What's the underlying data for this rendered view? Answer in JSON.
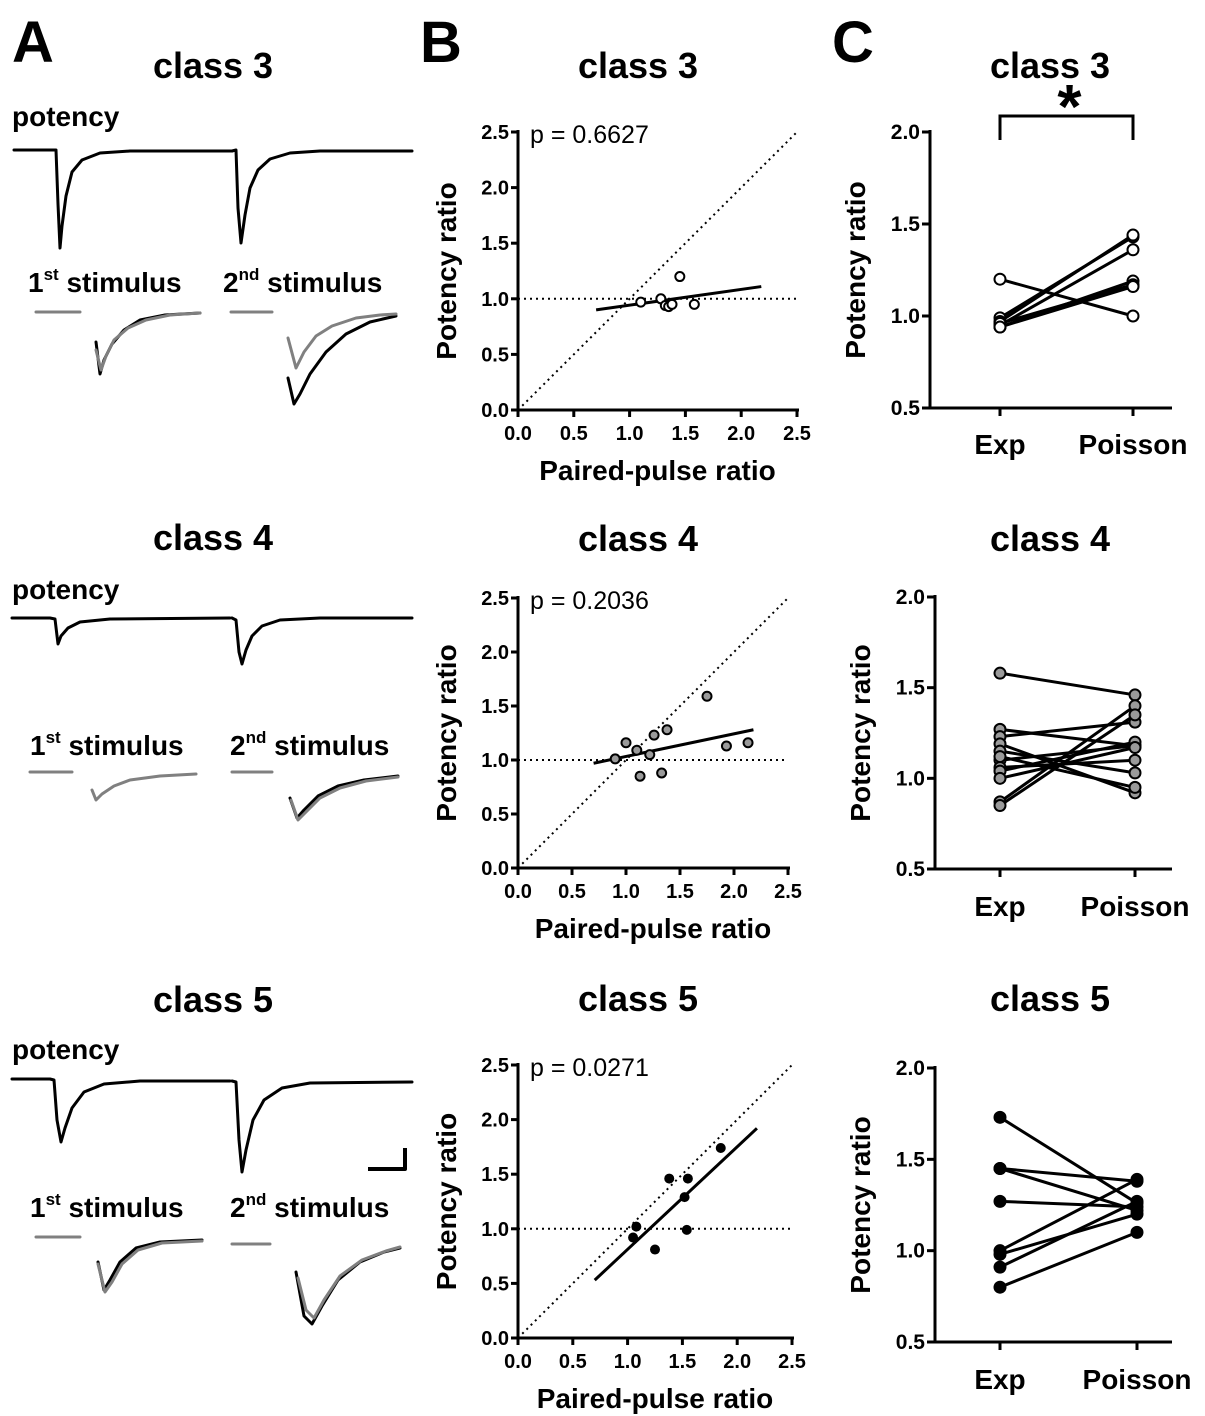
{
  "panels": {
    "a": "A",
    "b": "B",
    "c": "C"
  },
  "trace_labels": {
    "potency": "potency",
    "first_num": "1",
    "first_sup": "st",
    "first_word": " stimulus",
    "second_num": "2",
    "second_sup": "nd",
    "second_word": " stimulus"
  },
  "significance_marker": "*",
  "colors": {
    "ink": "#000000",
    "gray_trace": "#808080",
    "class4_marker": "#9a9a9a",
    "class5_marker": "#000000",
    "class3_marker": "#ffffff"
  },
  "chart_data": [
    {
      "id": "B3",
      "type": "scatter",
      "title": "class 3",
      "xlabel": "Paired-pulse ratio",
      "ylabel": "Potency ratio",
      "xlim": [
        0,
        2.5
      ],
      "ylim": [
        0,
        2.5
      ],
      "xticks": [
        "0.0",
        "0.5",
        "1.0",
        "1.5",
        "2.0",
        "2.5"
      ],
      "yticks": [
        "0.0",
        "0.5",
        "1.0",
        "1.5",
        "2.0",
        "2.5"
      ],
      "annotation": "p = 0.6627",
      "marker": "open",
      "x": [
        1.1,
        1.28,
        1.32,
        1.35,
        1.38,
        1.45,
        1.58
      ],
      "y": [
        0.97,
        1.0,
        0.94,
        0.93,
        0.95,
        1.2,
        0.95
      ],
      "fit": {
        "x": [
          0.7,
          2.18
        ],
        "y": [
          0.9,
          1.11
        ]
      },
      "reference_lines": [
        "identity",
        "y=1"
      ]
    },
    {
      "id": "B4",
      "type": "scatter",
      "title": "class 4",
      "xlabel": "Paired-pulse ratio",
      "ylabel": "Potency ratio",
      "xlim": [
        0,
        2.5
      ],
      "ylim": [
        0,
        2.5
      ],
      "xticks": [
        "0.0",
        "0.5",
        "1.0",
        "1.5",
        "2.0",
        "2.5"
      ],
      "yticks": [
        "0.0",
        "0.5",
        "1.0",
        "1.5",
        "2.0",
        "2.5"
      ],
      "annotation": "p = 0.2036",
      "marker": "gray",
      "x": [
        0.9,
        1.0,
        1.1,
        1.13,
        1.22,
        1.26,
        1.33,
        1.38,
        1.75,
        1.93,
        2.13
      ],
      "y": [
        1.01,
        1.16,
        1.09,
        0.85,
        1.05,
        1.23,
        0.88,
        1.28,
        1.59,
        1.13,
        1.16
      ],
      "fit": {
        "x": [
          0.7,
          2.18
        ],
        "y": [
          0.97,
          1.28
        ]
      },
      "reference_lines": [
        "identity",
        "y=1"
      ]
    },
    {
      "id": "B5",
      "type": "scatter",
      "title": "class 5",
      "xlabel": "Paired-pulse ratio",
      "ylabel": "Potency ratio",
      "xlim": [
        0,
        2.5
      ],
      "ylim": [
        0,
        2.5
      ],
      "xticks": [
        "0.0",
        "0.5",
        "1.0",
        "1.5",
        "2.0",
        "2.5"
      ],
      "yticks": [
        "0.0",
        "0.5",
        "1.0",
        "1.5",
        "2.0",
        "2.5"
      ],
      "annotation": "p = 0.0271",
      "marker": "black",
      "x": [
        1.05,
        1.08,
        1.25,
        1.38,
        1.52,
        1.54,
        1.55,
        1.85
      ],
      "y": [
        0.92,
        1.02,
        0.81,
        1.46,
        1.29,
        0.99,
        1.46,
        1.74
      ],
      "fit": {
        "x": [
          0.7,
          2.18
        ],
        "y": [
          0.53,
          1.92
        ]
      },
      "reference_lines": [
        "identity",
        "y=1"
      ]
    },
    {
      "id": "C3",
      "type": "line",
      "title": "class 3",
      "ylabel": "Potency ratio",
      "categories": [
        "Exp",
        "Poisson"
      ],
      "ylim": [
        0.5,
        2.0
      ],
      "yticks": [
        "0.5",
        "1.0",
        "1.5",
        "2.0"
      ],
      "marker": "open",
      "significance": "*",
      "pairs": [
        [
          1.2,
          1.0
        ],
        [
          0.99,
          1.43
        ],
        [
          0.97,
          1.44
        ],
        [
          0.95,
          1.36
        ],
        [
          0.94,
          1.19
        ],
        [
          0.96,
          1.17
        ],
        [
          0.94,
          1.16
        ]
      ]
    },
    {
      "id": "C4",
      "type": "line",
      "title": "class 4",
      "ylabel": "Potency ratio",
      "categories": [
        "Exp",
        "Poisson"
      ],
      "ylim": [
        0.5,
        2.0
      ],
      "yticks": [
        "0.5",
        "1.0",
        "1.5",
        "2.0"
      ],
      "marker": "gray",
      "pairs": [
        [
          1.58,
          1.46
        ],
        [
          1.27,
          1.18
        ],
        [
          1.23,
          1.31
        ],
        [
          1.19,
          0.92
        ],
        [
          1.15,
          1.03
        ],
        [
          1.1,
          1.18
        ],
        [
          1.06,
          1.1
        ],
        [
          1.04,
          1.2
        ],
        [
          0.87,
          1.4
        ],
        [
          0.85,
          1.35
        ],
        [
          1.12,
          0.95
        ],
        [
          1.0,
          1.17
        ]
      ]
    },
    {
      "id": "C5",
      "type": "line",
      "title": "class 5",
      "ylabel": "Potency ratio",
      "categories": [
        "Exp",
        "Poisson"
      ],
      "ylim": [
        0.5,
        2.0
      ],
      "yticks": [
        "0.5",
        "1.0",
        "1.5",
        "2.0"
      ],
      "marker": "black",
      "pairs": [
        [
          1.73,
          1.26
        ],
        [
          1.45,
          1.38
        ],
        [
          1.45,
          1.22
        ],
        [
          1.27,
          1.24
        ],
        [
          1.0,
          1.39
        ],
        [
          0.98,
          1.2
        ],
        [
          0.91,
          1.27
        ],
        [
          0.8,
          1.1
        ]
      ]
    }
  ]
}
